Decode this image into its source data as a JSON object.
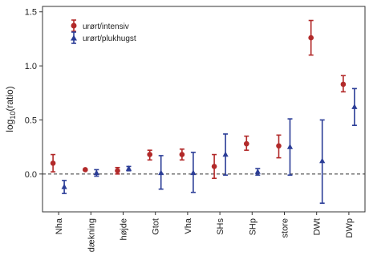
{
  "chart_data": {
    "type": "errorbar",
    "categories": [
      "Nha",
      "dækning",
      "højde",
      "Gtot",
      "Vha",
      "SHs",
      "SHp",
      "store",
      "DWt",
      "DWp"
    ],
    "ylabel_main": "log",
    "ylabel_sub": "10",
    "ylabel_rest": "(ratio)",
    "xlabel": "",
    "ylim": [
      -0.35,
      1.55
    ],
    "yticks": [
      0.0,
      0.5,
      1.0,
      1.5
    ],
    "ytick_labels": [
      "0.0",
      "0.5",
      "1.0",
      "1.5"
    ],
    "reference_line": 0.0,
    "legend_position": "top-left",
    "series": [
      {
        "name": "urørt/intensiv",
        "color": "#b22a2a",
        "marker": "circle",
        "values": [
          0.1,
          0.04,
          0.03,
          0.18,
          0.18,
          0.07,
          0.28,
          0.26,
          1.26,
          0.83
        ],
        "lower": [
          0.02,
          0.035,
          0.0,
          0.13,
          0.13,
          -0.04,
          0.22,
          0.15,
          1.1,
          0.76
        ],
        "upper": [
          0.18,
          0.045,
          0.06,
          0.22,
          0.23,
          0.18,
          0.35,
          0.36,
          1.42,
          0.91
        ]
      },
      {
        "name": "urørt/plukhugst",
        "color": "#2b3d97",
        "marker": "triangle",
        "values": [
          -0.12,
          0.01,
          0.05,
          0.01,
          0.01,
          0.18,
          0.02,
          0.25,
          0.12,
          0.62
        ],
        "lower": [
          -0.18,
          -0.02,
          0.03,
          -0.14,
          -0.17,
          -0.01,
          -0.01,
          -0.01,
          -0.27,
          0.45
        ],
        "upper": [
          -0.06,
          0.04,
          0.07,
          0.17,
          0.2,
          0.37,
          0.05,
          0.51,
          0.5,
          0.79
        ]
      }
    ]
  }
}
